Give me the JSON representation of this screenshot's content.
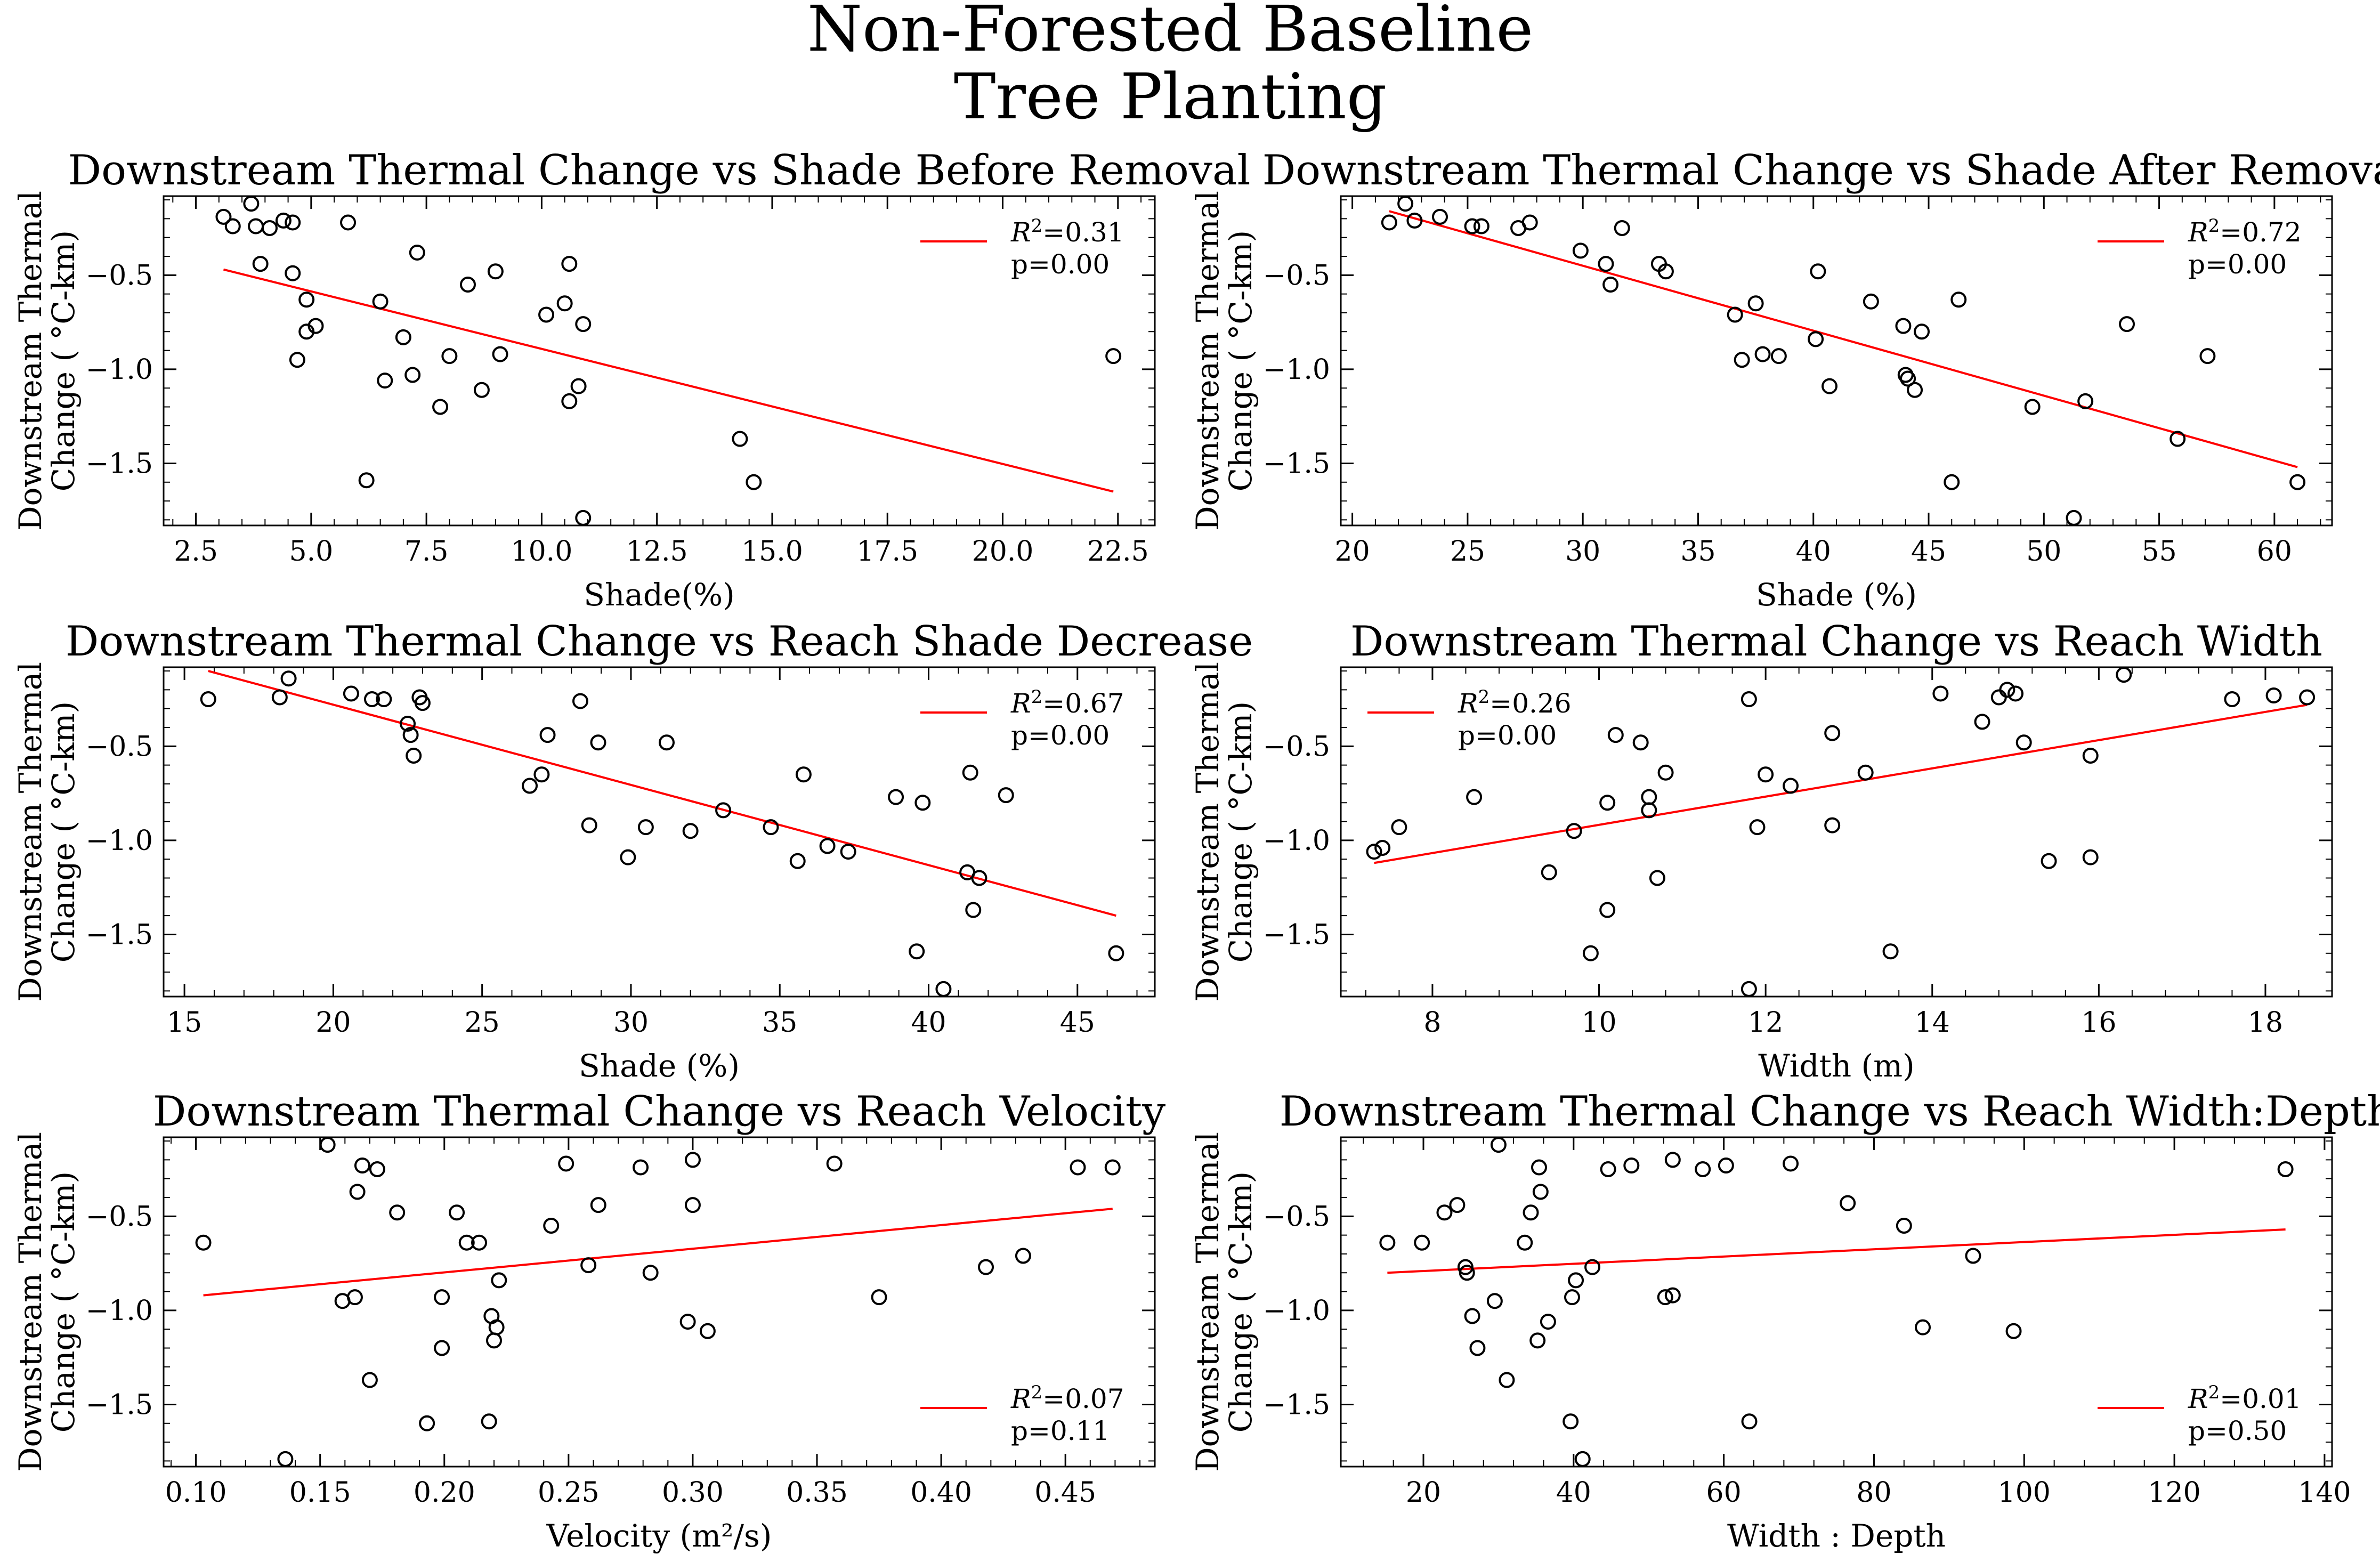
{
  "figure": {
    "title_line1": "Non-Forested Baseline",
    "title_line2": "Tree Planting"
  },
  "chart_data": [
    {
      "type": "scatter",
      "title": "Downstream Thermal Change vs Shade Before Removal",
      "xlabel": "Shade(%)",
      "ylabel_line1": "Downstream Thermal",
      "ylabel_line2": "Change ( °C-km)",
      "xlim": [
        1.8,
        23.3
      ],
      "ylim": [
        -1.83,
        -0.08
      ],
      "xticks": [
        2.5,
        5.0,
        7.5,
        10.0,
        12.5,
        15.0,
        17.5,
        20.0,
        22.5
      ],
      "xtick_labels": [
        "2.5",
        "5.0",
        "7.5",
        "10.0",
        "12.5",
        "15.0",
        "17.5",
        "20.0",
        "22.5"
      ],
      "yticks": [
        -0.5,
        -1.0,
        -1.5
      ],
      "ytick_labels": [
        "−0.5",
        "−1.0",
        "−1.5"
      ],
      "legend": {
        "r2": "0.31",
        "p": "p=0.00",
        "position": "upper right"
      },
      "fit": {
        "x": [
          3.1,
          22.4
        ],
        "y": [
          -0.47,
          -1.65
        ]
      },
      "points": [
        [
          3.1,
          -0.19
        ],
        [
          3.3,
          -0.24
        ],
        [
          3.7,
          -0.12
        ],
        [
          3.8,
          -0.24
        ],
        [
          3.9,
          -0.44
        ],
        [
          4.1,
          -0.25
        ],
        [
          4.4,
          -0.21
        ],
        [
          4.6,
          -0.22
        ],
        [
          4.6,
          -0.49
        ],
        [
          4.7,
          -0.95
        ],
        [
          4.9,
          -0.63
        ],
        [
          4.9,
          -0.8
        ],
        [
          5.1,
          -0.77
        ],
        [
          5.8,
          -0.22
        ],
        [
          6.2,
          -1.59
        ],
        [
          6.5,
          -0.64
        ],
        [
          6.6,
          -1.06
        ],
        [
          7.0,
          -0.83
        ],
        [
          7.2,
          -1.03
        ],
        [
          7.3,
          -0.38
        ],
        [
          7.8,
          -1.2
        ],
        [
          8.0,
          -0.93
        ],
        [
          8.4,
          -0.55
        ],
        [
          8.7,
          -1.11
        ],
        [
          9.0,
          -0.48
        ],
        [
          9.1,
          -0.92
        ],
        [
          10.1,
          -0.71
        ],
        [
          10.5,
          -0.65
        ],
        [
          10.6,
          -0.44
        ],
        [
          10.6,
          -1.17
        ],
        [
          10.8,
          -1.09
        ],
        [
          10.9,
          -0.76
        ],
        [
          10.9,
          -1.79
        ],
        [
          14.3,
          -1.37
        ],
        [
          14.6,
          -1.6
        ],
        [
          22.4,
          -0.93
        ]
      ]
    },
    {
      "type": "scatter",
      "title": "Downstream Thermal Change vs Shade After Removal",
      "xlabel": "Shade (%)",
      "ylabel_line1": "Downstream Thermal",
      "ylabel_line2": "Change ( °C-km)",
      "xlim": [
        19.5,
        62.5
      ],
      "ylim": [
        -1.83,
        -0.08
      ],
      "xticks": [
        20,
        25,
        30,
        35,
        40,
        45,
        50,
        55,
        60
      ],
      "xtick_labels": [
        "20",
        "25",
        "30",
        "35",
        "40",
        "45",
        "50",
        "55",
        "60"
      ],
      "yticks": [
        -0.5,
        -1.0,
        -1.5
      ],
      "ytick_labels": [
        "−0.5",
        "−1.0",
        "−1.5"
      ],
      "legend": {
        "r2": "0.72",
        "p": "p=0.00",
        "position": "upper right"
      },
      "fit": {
        "x": [
          21.6,
          61.0
        ],
        "y": [
          -0.16,
          -1.52
        ]
      },
      "points": [
        [
          21.6,
          -0.22
        ],
        [
          22.3,
          -0.12
        ],
        [
          22.7,
          -0.21
        ],
        [
          23.8,
          -0.19
        ],
        [
          25.2,
          -0.24
        ],
        [
          25.6,
          -0.24
        ],
        [
          27.2,
          -0.25
        ],
        [
          27.7,
          -0.22
        ],
        [
          29.9,
          -0.37
        ],
        [
          31.0,
          -0.44
        ],
        [
          31.2,
          -0.55
        ],
        [
          31.7,
          -0.25
        ],
        [
          33.3,
          -0.44
        ],
        [
          33.6,
          -0.48
        ],
        [
          36.6,
          -0.71
        ],
        [
          36.9,
          -0.95
        ],
        [
          37.5,
          -0.65
        ],
        [
          37.8,
          -0.92
        ],
        [
          38.5,
          -0.93
        ],
        [
          40.1,
          -0.84
        ],
        [
          40.2,
          -0.48
        ],
        [
          40.7,
          -1.09
        ],
        [
          42.5,
          -0.64
        ],
        [
          43.9,
          -0.77
        ],
        [
          44.0,
          -1.03
        ],
        [
          44.1,
          -1.05
        ],
        [
          44.4,
          -1.11
        ],
        [
          44.7,
          -0.8
        ],
        [
          46.0,
          -1.6
        ],
        [
          46.3,
          -0.63
        ],
        [
          49.5,
          -1.2
        ],
        [
          51.3,
          -1.79
        ],
        [
          51.8,
          -1.17
        ],
        [
          53.6,
          -0.76
        ],
        [
          55.8,
          -1.37
        ],
        [
          57.1,
          -0.93
        ],
        [
          61.0,
          -1.6
        ]
      ]
    },
    {
      "type": "scatter",
      "title": "Downstream Thermal Change vs Reach Shade Decrease",
      "xlabel": "Shade (%)",
      "ylabel_line1": "Downstream Thermal",
      "ylabel_line2": "Change ( °C-km)",
      "xlim": [
        14.3,
        47.6
      ],
      "ylim": [
        -1.83,
        -0.08
      ],
      "xticks": [
        15,
        20,
        25,
        30,
        35,
        40,
        45
      ],
      "xtick_labels": [
        "15",
        "20",
        "25",
        "30",
        "35",
        "40",
        "45"
      ],
      "yticks": [
        -0.5,
        -1.0,
        -1.5
      ],
      "ytick_labels": [
        "−0.5",
        "−1.0",
        "−1.5"
      ],
      "legend": {
        "r2": "0.67",
        "p": "p=0.00",
        "position": "upper right"
      },
      "fit": {
        "x": [
          15.8,
          46.3
        ],
        "y": [
          -0.1,
          -1.4
        ]
      },
      "points": [
        [
          15.8,
          -0.25
        ],
        [
          18.2,
          -0.24
        ],
        [
          18.5,
          -0.14
        ],
        [
          20.6,
          -0.22
        ],
        [
          21.3,
          -0.25
        ],
        [
          21.7,
          -0.25
        ],
        [
          22.5,
          -0.38
        ],
        [
          22.6,
          -0.44
        ],
        [
          22.7,
          -0.55
        ],
        [
          22.9,
          -0.24
        ],
        [
          23.0,
          -0.27
        ],
        [
          26.6,
          -0.71
        ],
        [
          27.0,
          -0.65
        ],
        [
          27.2,
          -0.44
        ],
        [
          28.3,
          -0.26
        ],
        [
          28.6,
          -0.92
        ],
        [
          28.9,
          -0.48
        ],
        [
          29.9,
          -1.09
        ],
        [
          30.5,
          -0.93
        ],
        [
          31.2,
          -0.48
        ],
        [
          32.0,
          -0.95
        ],
        [
          33.1,
          -0.84
        ],
        [
          34.7,
          -0.93
        ],
        [
          35.6,
          -1.11
        ],
        [
          35.8,
          -0.65
        ],
        [
          36.6,
          -1.03
        ],
        [
          37.3,
          -1.06
        ],
        [
          38.9,
          -0.77
        ],
        [
          39.6,
          -1.59
        ],
        [
          39.8,
          -0.8
        ],
        [
          40.5,
          -1.79
        ],
        [
          41.3,
          -1.17
        ],
        [
          41.4,
          -0.64
        ],
        [
          41.5,
          -1.37
        ],
        [
          41.7,
          -1.2
        ],
        [
          42.6,
          -0.76
        ],
        [
          46.3,
          -1.6
        ]
      ]
    },
    {
      "type": "scatter",
      "title": "Downstream Thermal Change vs Reach Width",
      "xlabel": "Width (m)",
      "ylabel_line1": "Downstream Thermal",
      "ylabel_line2": "Change ( °C-km)",
      "xlim": [
        6.9,
        18.8
      ],
      "ylim": [
        -1.83,
        -0.08
      ],
      "xticks": [
        8,
        10,
        12,
        14,
        16,
        18
      ],
      "xtick_labels": [
        "8",
        "10",
        "12",
        "14",
        "16",
        "18"
      ],
      "yticks": [
        -0.5,
        -1.0,
        -1.5
      ],
      "ytick_labels": [
        "−0.5",
        "−1.0",
        "−1.5"
      ],
      "legend": {
        "r2": "0.26",
        "p": "p=0.00",
        "position": "upper left"
      },
      "fit": {
        "x": [
          7.3,
          18.5
        ],
        "y": [
          -1.12,
          -0.28
        ]
      },
      "points": [
        [
          7.3,
          -1.06
        ],
        [
          7.4,
          -1.04
        ],
        [
          7.6,
          -0.93
        ],
        [
          8.5,
          -0.77
        ],
        [
          9.4,
          -1.17
        ],
        [
          9.7,
          -0.95
        ],
        [
          9.9,
          -1.6
        ],
        [
          10.1,
          -1.37
        ],
        [
          10.1,
          -0.8
        ],
        [
          10.2,
          -0.44
        ],
        [
          10.5,
          -0.48
        ],
        [
          10.6,
          -0.84
        ],
        [
          10.6,
          -0.77
        ],
        [
          10.7,
          -1.2
        ],
        [
          10.8,
          -0.64
        ],
        [
          11.8,
          -0.25
        ],
        [
          11.8,
          -1.79
        ],
        [
          11.9,
          -0.93
        ],
        [
          12.0,
          -0.65
        ],
        [
          12.3,
          -0.71
        ],
        [
          12.8,
          -0.43
        ],
        [
          12.8,
          -0.92
        ],
        [
          13.2,
          -0.64
        ],
        [
          13.5,
          -1.59
        ],
        [
          14.1,
          -0.22
        ],
        [
          14.6,
          -0.37
        ],
        [
          14.8,
          -0.24
        ],
        [
          14.9,
          -0.2
        ],
        [
          15.0,
          -0.22
        ],
        [
          15.1,
          -0.48
        ],
        [
          15.4,
          -1.11
        ],
        [
          15.9,
          -1.09
        ],
        [
          15.9,
          -0.55
        ],
        [
          16.3,
          -0.12
        ],
        [
          17.6,
          -0.25
        ],
        [
          18.1,
          -0.23
        ],
        [
          18.5,
          -0.24
        ]
      ]
    },
    {
      "type": "scatter",
      "title": "Downstream Thermal Change vs Reach Velocity",
      "xlabel": "Velocity (m²/s)",
      "ylabel_line1": "Downstream Thermal",
      "ylabel_line2": "Change ( °C-km)",
      "xlim": [
        0.087,
        0.486
      ],
      "ylim": [
        -1.83,
        -0.08
      ],
      "xticks": [
        0.1,
        0.15,
        0.2,
        0.25,
        0.3,
        0.35,
        0.4,
        0.45
      ],
      "xtick_labels": [
        "0.10",
        "0.15",
        "0.20",
        "0.25",
        "0.30",
        "0.35",
        "0.40",
        "0.45"
      ],
      "yticks": [
        -0.5,
        -1.0,
        -1.5
      ],
      "ytick_labels": [
        "−0.5",
        "−1.0",
        "−1.5"
      ],
      "legend": {
        "r2": "0.07",
        "p": "p=0.11",
        "position": "lower right"
      },
      "fit": {
        "x": [
          0.103,
          0.469
        ],
        "y": [
          -0.92,
          -0.46
        ]
      },
      "points": [
        [
          0.103,
          -0.64
        ],
        [
          0.136,
          -1.79
        ],
        [
          0.153,
          -0.12
        ],
        [
          0.159,
          -0.95
        ],
        [
          0.164,
          -0.93
        ],
        [
          0.165,
          -0.37
        ],
        [
          0.167,
          -0.23
        ],
        [
          0.17,
          -1.37
        ],
        [
          0.173,
          -0.25
        ],
        [
          0.181,
          -0.48
        ],
        [
          0.193,
          -1.6
        ],
        [
          0.199,
          -1.2
        ],
        [
          0.199,
          -0.93
        ],
        [
          0.205,
          -0.48
        ],
        [
          0.209,
          -0.64
        ],
        [
          0.214,
          -0.64
        ],
        [
          0.218,
          -1.59
        ],
        [
          0.219,
          -1.03
        ],
        [
          0.22,
          -1.16
        ],
        [
          0.221,
          -1.09
        ],
        [
          0.222,
          -0.84
        ],
        [
          0.243,
          -0.55
        ],
        [
          0.249,
          -0.22
        ],
        [
          0.258,
          -0.76
        ],
        [
          0.262,
          -0.44
        ],
        [
          0.279,
          -0.24
        ],
        [
          0.283,
          -0.8
        ],
        [
          0.298,
          -1.06
        ],
        [
          0.3,
          -0.2
        ],
        [
          0.3,
          -0.44
        ],
        [
          0.306,
          -1.11
        ],
        [
          0.357,
          -0.22
        ],
        [
          0.375,
          -0.93
        ],
        [
          0.418,
          -0.77
        ],
        [
          0.433,
          -0.71
        ],
        [
          0.455,
          -0.24
        ],
        [
          0.469,
          -0.24
        ]
      ]
    },
    {
      "type": "scatter",
      "title": "Downstream Thermal Change vs Reach Width:Depth",
      "xlabel": "Width : Depth",
      "ylabel_line1": "Downstream Thermal",
      "ylabel_line2": "Change ( °C-km)",
      "xlim": [
        9,
        141
      ],
      "ylim": [
        -1.83,
        -0.08
      ],
      "xticks": [
        20,
        40,
        60,
        80,
        100,
        120,
        140
      ],
      "xtick_labels": [
        "20",
        "40",
        "60",
        "80",
        "100",
        "120",
        "140"
      ],
      "yticks": [
        -0.5,
        -1.0,
        -1.5
      ],
      "ytick_labels": [
        "−0.5",
        "−1.0",
        "−1.5"
      ],
      "legend": {
        "r2": "0.01",
        "p": "p=0.50",
        "position": "lower right"
      },
      "fit": {
        "x": [
          15.2,
          134.8
        ],
        "y": [
          -0.8,
          -0.57
        ]
      },
      "points": [
        [
          15.2,
          -0.64
        ],
        [
          19.8,
          -0.64
        ],
        [
          22.8,
          -0.48
        ],
        [
          24.5,
          -0.44
        ],
        [
          25.6,
          -0.77
        ],
        [
          25.8,
          -0.8
        ],
        [
          26.5,
          -1.03
        ],
        [
          27.2,
          -1.2
        ],
        [
          29.5,
          -0.95
        ],
        [
          30.0,
          -0.12
        ],
        [
          31.1,
          -1.37
        ],
        [
          33.5,
          -0.64
        ],
        [
          34.3,
          -0.48
        ],
        [
          35.2,
          -1.16
        ],
        [
          35.4,
          -0.24
        ],
        [
          35.6,
          -0.37
        ],
        [
          36.6,
          -1.06
        ],
        [
          39.6,
          -1.59
        ],
        [
          39.8,
          -0.93
        ],
        [
          40.3,
          -0.84
        ],
        [
          41.2,
          -1.79
        ],
        [
          42.5,
          -0.77
        ],
        [
          44.6,
          -0.25
        ],
        [
          47.7,
          -0.23
        ],
        [
          52.2,
          -0.93
        ],
        [
          53.2,
          -0.2
        ],
        [
          53.2,
          -0.92
        ],
        [
          57.2,
          -0.25
        ],
        [
          60.3,
          -0.23
        ],
        [
          63.4,
          -1.59
        ],
        [
          68.9,
          -0.22
        ],
        [
          76.5,
          -0.43
        ],
        [
          84.0,
          -0.55
        ],
        [
          86.5,
          -1.09
        ],
        [
          93.2,
          -0.71
        ],
        [
          98.6,
          -1.11
        ],
        [
          134.8,
          -0.25
        ]
      ]
    }
  ]
}
